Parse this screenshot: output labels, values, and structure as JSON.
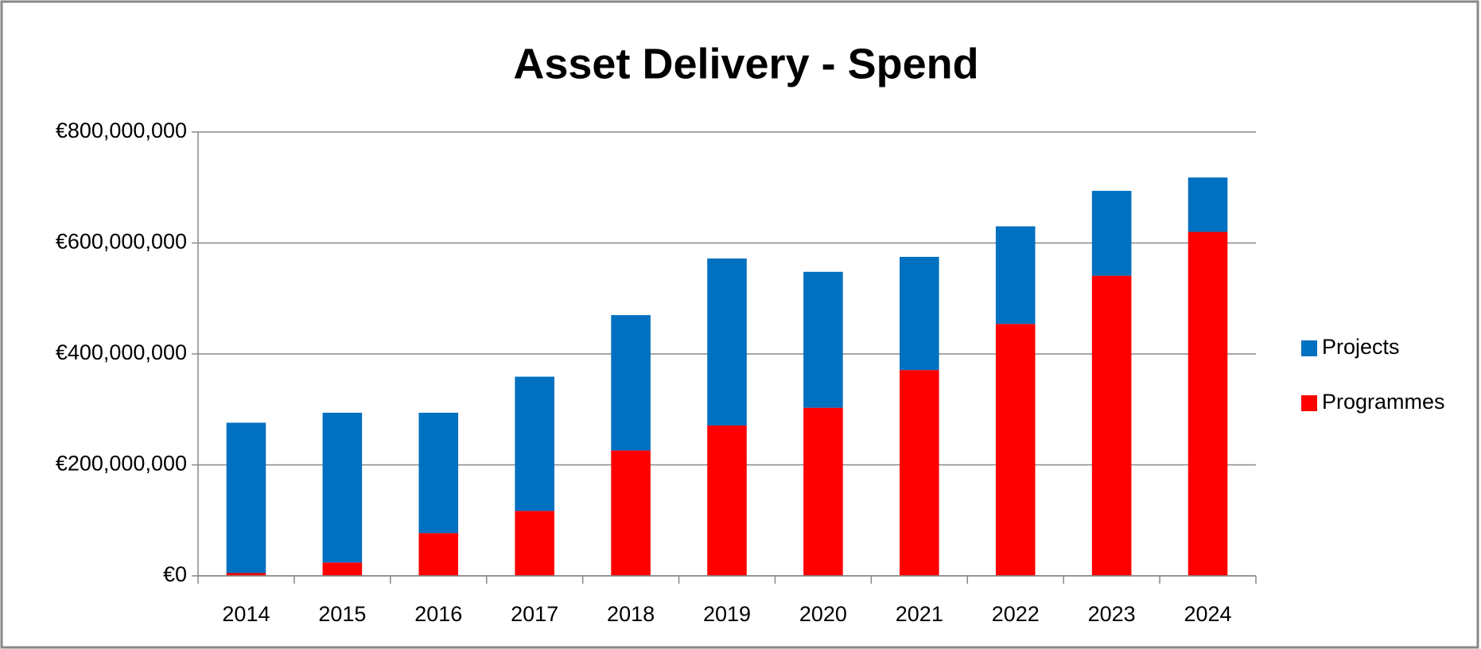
{
  "chart_data": {
    "type": "stacked_bar",
    "title": "Asset Delivery - Spend",
    "categories": [
      "2014",
      "2015",
      "2016",
      "2017",
      "2018",
      "2019",
      "2020",
      "2021",
      "2022",
      "2023",
      "2024"
    ],
    "series": [
      {
        "name": "Projects",
        "color": "#0070c0",
        "values": [
          271000000,
          270000000,
          217000000,
          242000000,
          244000000,
          301000000,
          245000000,
          204000000,
          176000000,
          153000000,
          98000000
        ]
      },
      {
        "name": "Programmes",
        "color": "#ff0000",
        "values": [
          5000000,
          24000000,
          77000000,
          117000000,
          226000000,
          271000000,
          303000000,
          371000000,
          454000000,
          541000000,
          620000000
        ]
      }
    ],
    "ylim": [
      0,
      800000000
    ],
    "yticks": [
      {
        "value": 0,
        "label": "€0"
      },
      {
        "value": 200000000,
        "label": "€200,000,000"
      },
      {
        "value": 400000000,
        "label": "€400,000,000"
      },
      {
        "value": 600000000,
        "label": "€600,000,000"
      },
      {
        "value": 800000000,
        "label": "€800,000,000"
      }
    ],
    "grid": true,
    "legend": "right"
  }
}
